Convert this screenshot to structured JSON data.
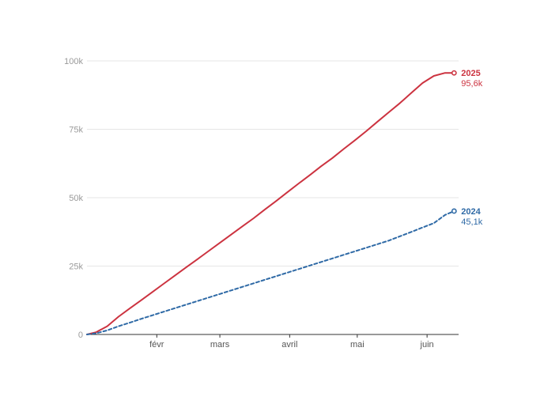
{
  "chart_data": {
    "type": "line",
    "title": "",
    "xlabel": "",
    "ylabel": "",
    "x_unit": "day of year",
    "xlim": [
      1,
      166
    ],
    "ylim": [
      0,
      100000
    ],
    "y_ticks": [
      0,
      25000,
      50000,
      75000,
      100000
    ],
    "y_tick_labels": [
      "0",
      "25k",
      "50k",
      "75k",
      "100k"
    ],
    "x_ticks": [
      32,
      60,
      91,
      121,
      152
    ],
    "x_tick_labels": [
      "févr",
      "mars",
      "avril",
      "mai",
      "juin"
    ],
    "grid": "horizontal",
    "series": [
      {
        "name": "2025",
        "end_label": "95,6k",
        "color": "#cc3340",
        "dash": "solid",
        "x": [
          1,
          5,
          10,
          15,
          20,
          25,
          30,
          35,
          40,
          45,
          50,
          55,
          60,
          65,
          70,
          75,
          80,
          85,
          90,
          95,
          100,
          105,
          110,
          115,
          120,
          125,
          130,
          135,
          140,
          145,
          150,
          155,
          160,
          164
        ],
        "values": [
          0,
          800,
          3000,
          6500,
          9500,
          12500,
          15500,
          18500,
          21500,
          24500,
          27500,
          30500,
          33500,
          36500,
          39500,
          42500,
          45700,
          48800,
          52000,
          55200,
          58300,
          61500,
          64500,
          67800,
          71000,
          74300,
          77800,
          81200,
          84600,
          88300,
          91900,
          94500,
          95600,
          95600
        ]
      },
      {
        "name": "2024",
        "end_label": "45,1k",
        "color": "#2f6aa6",
        "dash": "dashed",
        "x": [
          1,
          5,
          10,
          15,
          20,
          25,
          30,
          35,
          40,
          45,
          50,
          55,
          60,
          65,
          70,
          75,
          80,
          85,
          90,
          95,
          100,
          105,
          110,
          115,
          120,
          125,
          130,
          135,
          140,
          145,
          150,
          155,
          160,
          164
        ],
        "values": [
          0,
          400,
          1500,
          3000,
          4300,
          5700,
          7000,
          8300,
          9600,
          10900,
          12200,
          13500,
          14800,
          16100,
          17400,
          18700,
          20000,
          21300,
          22600,
          23900,
          25200,
          26500,
          27800,
          29100,
          30400,
          31700,
          33000,
          34300,
          35900,
          37500,
          39100,
          40700,
          43700,
          45100
        ]
      }
    ]
  }
}
